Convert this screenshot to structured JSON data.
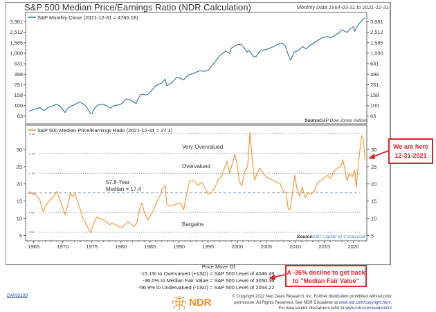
{
  "chart_data": [
    {
      "type": "line",
      "title": "S&P 500 Median Price/Earnings Ratio (NDR Calculation)",
      "subtitle": "Monthly Data 1964-03-31 to 2021-12-31",
      "panel": "upper",
      "legend": "S&P Monthly Close (2021-12-31 = 4766.18)",
      "legend_position": "top-left",
      "yscale": "log",
      "ylim": [
        45,
        6000
      ],
      "yticks": [
        3981,
        2512,
        1585,
        1000,
        631,
        398,
        251,
        158,
        100,
        63
      ],
      "ytick_labels": [
        "3,981",
        "2,512",
        "1,585",
        "1,000",
        "631",
        "398",
        "251",
        "158",
        "100",
        "63"
      ],
      "source_label": "Source:",
      "source": "S&P Dow Jones Indices",
      "series": [
        {
          "name": "S&P Monthly Close",
          "color": "#2a6f9e",
          "x": [
            1964.2,
            1965.0,
            1965.5,
            1966.0,
            1966.8,
            1967.5,
            1968.0,
            1968.9,
            1969.5,
            1970.4,
            1970.9,
            1971.5,
            1972.0,
            1972.9,
            1973.5,
            1974.0,
            1974.7,
            1975.0,
            1975.5,
            1976.0,
            1976.9,
            1977.5,
            1978.2,
            1978.9,
            1979.5,
            1980.2,
            1980.9,
            1981.5,
            1982.6,
            1983.0,
            1983.5,
            1984.5,
            1985.0,
            1986.0,
            1987.0,
            1987.6,
            1987.9,
            1988.5,
            1989.0,
            1989.6,
            1990.0,
            1990.8,
            1991.5,
            1992.5,
            1993.5,
            1994.5,
            1995.0,
            1996.0,
            1997.0,
            1998.0,
            1998.7,
            1999.0,
            2000.0,
            2000.7,
            2001.0,
            2001.7,
            2002.0,
            2002.8,
            2003.2,
            2004.0,
            2005.0,
            2006.0,
            2007.0,
            2007.8,
            2008.3,
            2008.8,
            2009.2,
            2009.8,
            2010.5,
            2011.3,
            2011.8,
            2012.5,
            2013.5,
            2014.5,
            2015.5,
            2016.1,
            2016.8,
            2017.5,
            2018.0,
            2018.9,
            2019.5,
            2020.0,
            2020.2,
            2020.6,
            2021.0,
            2021.5,
            2021.99
          ],
          "y": [
            79,
            85,
            87,
            92,
            80,
            93,
            96,
            106,
            98,
            74,
            90,
            99,
            104,
            118,
            108,
            98,
            73,
            70,
            90,
            102,
            107,
            100,
            90,
            100,
            103,
            110,
            135,
            130,
            110,
            140,
            165,
            160,
            180,
            240,
            270,
            320,
            240,
            260,
            290,
            350,
            340,
            310,
            380,
            415,
            460,
            455,
            470,
            640,
            900,
            1100,
            990,
            1250,
            1450,
            1480,
            1370,
            1050,
            1130,
            870,
            850,
            1130,
            1180,
            1300,
            1470,
            1550,
            1350,
            930,
            740,
            1050,
            1120,
            1350,
            1200,
            1400,
            1650,
            1950,
            2100,
            1950,
            2200,
            2450,
            2800,
            2500,
            2950,
            3230,
            2600,
            3200,
            3700,
            4300,
            4766.18
          ]
        }
      ]
    },
    {
      "type": "line",
      "panel": "lower",
      "legend": "S&P 500 Median Price/Earnings Ratio (2021-12-31 = 27.1)",
      "legend_position": "top-left",
      "ylim": [
        3.5,
        37
      ],
      "yticks": [
        5,
        10,
        15,
        20,
        25,
        30
      ],
      "xlim": [
        1963.6,
        2022.3
      ],
      "xticks": [
        1965,
        1970,
        1975,
        1980,
        1985,
        1990,
        1995,
        2000,
        2005,
        2010,
        2015,
        2020
      ],
      "reference_lines": [
        {
          "label": "+3 SD",
          "value": 34.5,
          "style": "dotted"
        },
        {
          "label": "+2 SD",
          "value": 28.8,
          "style": "dotted"
        },
        {
          "label": "+1 SD",
          "value": 23.1,
          "style": "dotted"
        },
        {
          "label": "Median",
          "value": 17.4,
          "style": "dashed"
        },
        {
          "label": "-1 SD",
          "value": 11.7,
          "style": "dotted"
        },
        {
          "label": "-2 SD",
          "value": 6.0,
          "style": "dotted"
        }
      ],
      "annotations": {
        "very_overvalued": "Very Overvalued",
        "overvalued": "Overvalued",
        "bargains": "Bargains",
        "median_line1": "57.8-Year",
        "median_line2": "Median = 17.4"
      },
      "source_label": "Source:",
      "source": "S&P Capital IQ Compustat",
      "series": [
        {
          "name": "S&P 500 Median Price/Earnings Ratio",
          "color": "#f5922a",
          "x": [
            1964.2,
            1964.8,
            1965.5,
            1966.0,
            1966.6,
            1967.0,
            1967.6,
            1968.0,
            1968.5,
            1968.9,
            1969.4,
            1969.9,
            1970.4,
            1970.9,
            1971.3,
            1971.7,
            1972.1,
            1972.6,
            1973.0,
            1973.5,
            1974.0,
            1974.4,
            1974.8,
            1975.3,
            1975.8,
            1976.3,
            1976.9,
            1977.5,
            1978.0,
            1978.6,
            1979.2,
            1979.8,
            1980.2,
            1980.7,
            1981.2,
            1981.7,
            1982.2,
            1982.7,
            1983.2,
            1983.6,
            1984.0,
            1984.6,
            1985.0,
            1985.6,
            1986.2,
            1986.7,
            1987.1,
            1987.6,
            1987.9,
            1988.4,
            1989.0,
            1989.6,
            1990.2,
            1990.8,
            1991.3,
            1991.8,
            1992.5,
            1993.2,
            1993.9,
            1994.6,
            1995.0,
            1995.6,
            1996.2,
            1996.8,
            1997.3,
            1997.8,
            1998.3,
            1998.7,
            1999.2,
            1999.6,
            2000.0,
            2000.4,
            2000.8,
            2001.3,
            2001.8,
            2002.2,
            2002.6,
            2003.0,
            2003.4,
            2003.9,
            2004.5,
            2005.0,
            2005.6,
            2006.2,
            2006.8,
            2007.4,
            2007.9,
            2008.4,
            2008.8,
            2009.1,
            2009.5,
            2009.9,
            2010.3,
            2010.7,
            2011.2,
            2011.7,
            2012.2,
            2012.7,
            2013.3,
            2013.9,
            2014.5,
            2015.1,
            2015.6,
            2016.1,
            2016.6,
            2017.2,
            2017.8,
            2018.2,
            2018.6,
            2018.9,
            2019.3,
            2019.8,
            2020.2,
            2020.5,
            2020.8,
            2021.1,
            2021.4,
            2021.7,
            2021.99
          ],
          "y": [
            17.8,
            17.0,
            16.6,
            15.5,
            12.0,
            13.5,
            15.0,
            15.6,
            16.5,
            17.8,
            16.0,
            13.5,
            11.0,
            14.0,
            17.5,
            16.2,
            17.2,
            14.5,
            12.5,
            9.8,
            8.5,
            7.0,
            5.9,
            8.5,
            10.3,
            10.0,
            9.6,
            9.0,
            8.2,
            8.6,
            7.9,
            7.5,
            7.2,
            8.2,
            9.0,
            8.3,
            7.6,
            8.5,
            12.5,
            14.5,
            12.0,
            9.5,
            10.5,
            12.5,
            15.0,
            16.5,
            18.5,
            19.5,
            14.0,
            13.5,
            13.8,
            14.2,
            14.5,
            12.5,
            17.0,
            20.8,
            21.0,
            19.5,
            20.5,
            18.5,
            17.0,
            17.5,
            19.0,
            21.5,
            22.0,
            24.5,
            26.5,
            23.0,
            26.0,
            28.5,
            25.5,
            20.5,
            19.5,
            23.5,
            25.0,
            35.0,
            27.0,
            21.0,
            23.0,
            24.5,
            23.0,
            22.0,
            21.5,
            21.0,
            20.5,
            20.0,
            17.8,
            17.5,
            12.5,
            12.5,
            17.0,
            22.5,
            18.5,
            16.5,
            19.0,
            16.0,
            17.5,
            17.0,
            18.0,
            20.5,
            21.0,
            22.0,
            22.5,
            21.5,
            23.5,
            24.5,
            25.0,
            27.0,
            23.5,
            21.0,
            23.0,
            22.0,
            24.0,
            19.0,
            25.0,
            29.5,
            34.0,
            33.0,
            27.1
          ]
        }
      ]
    }
  ],
  "price_move": {
    "header": "Price Move Of:",
    "lines": [
      "-15.1% to Overvalued (+1SD) = S&P 500 Level of 4046.49",
      "-36.0% to Median Fair Value = S&P 500 Level of 3050.36",
      "-56.9% to Undervalued (-1SD) = S&P 500 Level of 2054.22"
    ]
  },
  "callouts": {
    "current": [
      "We are here",
      "12-31-2021"
    ],
    "decline": [
      "A -36% decline to get back",
      "to “Median Fair Value”"
    ],
    "color": "#e0202a"
  },
  "footer": {
    "chart_code": "DAVIS100",
    "logo_text": "NDR",
    "copyright_line1": "© Copyright 2022 Ned Davis Research, Inc. Further distribution prohibited without prior",
    "copyright_line2_text": "permission. All Rights Reserved. See NDR Disclaimer at ",
    "copyright_line2_link": "www.ndr.com/copyright.html.",
    "copyright_line3_text": "For data vendor disclaimers refer to ",
    "copyright_line3_link": "www.ndr.com/vendorinfo/"
  },
  "colors": {
    "sp500_line": "#2a6f9e",
    "pe_line": "#f5922a",
    "source_link": "#4a8fd0",
    "accent_red": "#e0202a",
    "ndr_orange": "#f08a1c"
  }
}
